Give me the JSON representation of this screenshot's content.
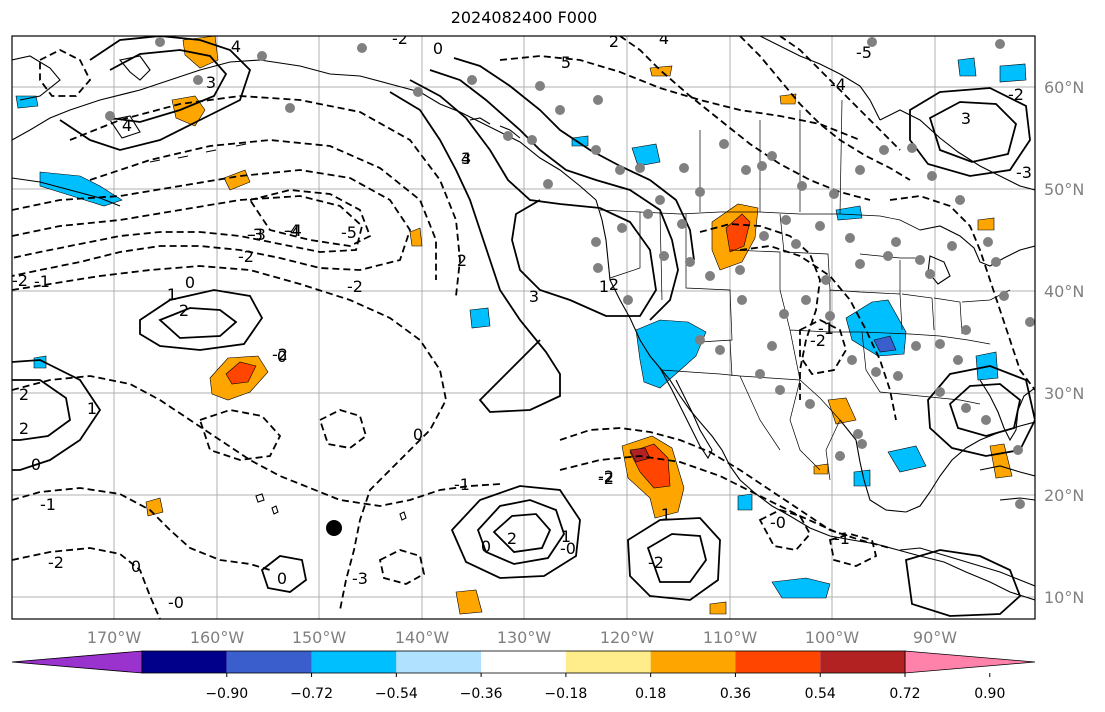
{
  "title": "2024082400 F000",
  "map": {
    "lon_labels": [
      "170°W",
      "160°W",
      "150°W",
      "140°W",
      "130°W",
      "120°W",
      "110°W",
      "100°W",
      "90°W"
    ],
    "lat_labels": [
      "60°N",
      "50°N",
      "40°N",
      "30°N",
      "20°N",
      "10°N"
    ],
    "contour_labels": [
      "4",
      "3",
      "4",
      "-2",
      "0",
      "2",
      "4",
      "5",
      "-4",
      "-3",
      "-2",
      "-1",
      "1",
      "2",
      "0",
      "2",
      "-5",
      "-4",
      "-3",
      "-2",
      "-2",
      "0",
      "1",
      "2",
      "0",
      "3",
      "3",
      "2",
      "-1",
      "0",
      "-2",
      "-2",
      "-1",
      "0",
      "-3",
      "1",
      "-2",
      "2",
      "-0",
      "1",
      "-0",
      "-2",
      "0",
      "-1",
      "2",
      "1",
      "0",
      "4",
      "3",
      "-2",
      "-3",
      "-2",
      "-1",
      "-0",
      "-5",
      "-4",
      "-2"
    ],
    "colors": {
      "purple": "#9a32cd",
      "navy": "#00008b",
      "blue": "#3a5fcd",
      "deepsky": "#00bfff",
      "lightblue": "#b0e2ff",
      "white": "#ffffff",
      "yellow": "#ffec8b",
      "orange": "#ffa500",
      "orangered": "#ff4500",
      "brick": "#b22222",
      "pink": "#ff82ab",
      "grid": "#b0b0b0",
      "dot": "#808080"
    }
  },
  "colorbar": {
    "ticks": [
      "−0.90",
      "−0.72",
      "−0.54",
      "−0.36",
      "−0.18",
      "0.18",
      "0.36",
      "0.54",
      "0.72",
      "0.90"
    ],
    "colors": [
      "#9a32cd",
      "#00008b",
      "#3a5fcd",
      "#00bfff",
      "#b0e2ff",
      "#ffffff",
      "#ffec8b",
      "#ffa500",
      "#ff4500",
      "#b22222",
      "#ff82ab"
    ]
  }
}
